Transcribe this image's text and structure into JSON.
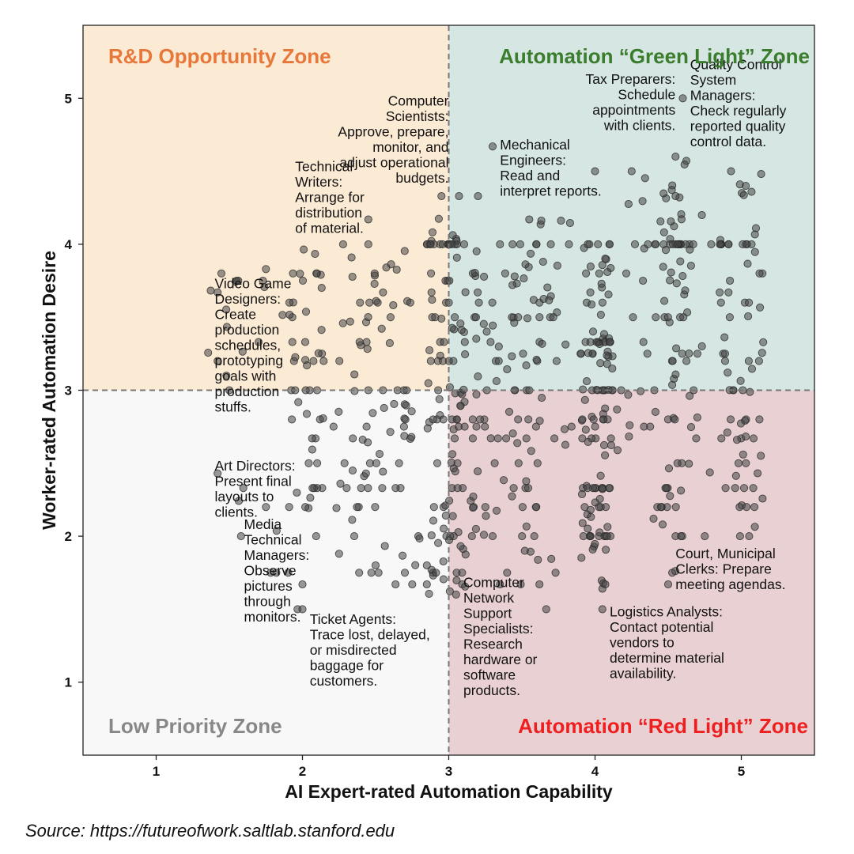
{
  "chart_data": {
    "type": "scatter",
    "title": "",
    "xlabel": "AI Expert-rated Automation Capability",
    "ylabel": "Worker-rated Automation Desire",
    "xlim": [
      0.5,
      5.5
    ],
    "ylim": [
      0.5,
      5.5
    ],
    "xticks": [
      "1",
      "2",
      "3",
      "4",
      "5"
    ],
    "yticks": [
      "1",
      "2",
      "3",
      "4",
      "5"
    ],
    "grid": false,
    "threshold_lines": {
      "x": 3,
      "y": 3,
      "style": "dashed"
    },
    "zones": [
      {
        "name": "R&D Opportunity Zone",
        "quadrant": "top-left",
        "fill": "#fcebd4",
        "label_color": "#e8773a"
      },
      {
        "name": "Automation “Green Light” Zone",
        "quadrant": "top-right",
        "fill": "#d6e6e3",
        "label_color": "#3a7d2c"
      },
      {
        "name": "Low Priority Zone",
        "quadrant": "bottom-left",
        "fill": "#f8f8f8",
        "label_color": "#888888"
      },
      {
        "name": "Automation “Red Light” Zone",
        "quadrant": "bottom-right",
        "fill": "#e9d0d3",
        "label_color": "#ee1f1f"
      }
    ],
    "annotations": [
      {
        "x": 1.4,
        "y": 3.7,
        "anchor": "start",
        "lines": [
          "Video Game",
          "Designers:",
          "Create",
          "production",
          "schedules,",
          "prototyping",
          "goals with",
          "production",
          "stuffs."
        ]
      },
      {
        "x": 1.95,
        "y": 4.5,
        "anchor": "start",
        "lines": [
          "Technical",
          "Writers:",
          "Arrange for",
          "distribution",
          "of material."
        ]
      },
      {
        "x": 3.0,
        "y": 4.95,
        "anchor": "end",
        "lines": [
          "Computer",
          "Scientists:",
          "Approve, prepare,",
          "monitor, and",
          "adjust operational",
          "budgets."
        ]
      },
      {
        "x": 3.35,
        "y": 4.65,
        "anchor": "start",
        "lines": [
          "Mechanical",
          "Engineers:",
          "Read and",
          "interpret reports."
        ]
      },
      {
        "x": 4.55,
        "y": 5.1,
        "anchor": "end",
        "lines": [
          "Tax Preparers:",
          "Schedule",
          "appointments",
          "with clients."
        ]
      },
      {
        "x": 4.65,
        "y": 5.2,
        "anchor": "start",
        "lines": [
          "Quality Control",
          "System",
          "Managers:",
          "Check regularly",
          "reported quality",
          "control data."
        ]
      },
      {
        "x": 1.4,
        "y": 2.45,
        "anchor": "start",
        "lines": [
          "Art Directors:",
          "Present final",
          "layouts to",
          "clients."
        ]
      },
      {
        "x": 1.6,
        "y": 2.05,
        "anchor": "start",
        "lines": [
          "Media",
          "Technical",
          "Managers:",
          "Observe",
          "pictures",
          "through",
          "monitors."
        ]
      },
      {
        "x": 2.05,
        "y": 1.4,
        "anchor": "start",
        "lines": [
          "Ticket Agents:",
          "Trace lost, delayed,",
          "or misdirected",
          "baggage for",
          "customers."
        ]
      },
      {
        "x": 3.1,
        "y": 1.65,
        "anchor": "start",
        "lines": [
          "Computer",
          "Network",
          "Support",
          "Specialists:",
          "Research",
          "hardware or",
          "software",
          "products."
        ]
      },
      {
        "x": 4.1,
        "y": 1.45,
        "anchor": "start",
        "lines": [
          "Logistics Analysts:",
          "Contact potential",
          "vendors to",
          "determine material",
          "availability."
        ]
      },
      {
        "x": 4.55,
        "y": 1.85,
        "anchor": "start",
        "lines": [
          "Court, Municipal",
          "Clerks: Prepare",
          "meeting agendas."
        ]
      }
    ],
    "point_groups": [
      {
        "x_range": [
          1.35,
          1.6
        ],
        "y_range": [
          3.0,
          3.8
        ],
        "n": 8
      },
      {
        "x_range": [
          1.7,
          1.9
        ],
        "y_range": [
          3.3,
          3.85
        ],
        "n": 3
      },
      {
        "x_range": [
          1.9,
          2.15
        ],
        "y_range": [
          2.1,
          4.0
        ],
        "n": 45
      },
      {
        "x_range": [
          1.75,
          2.1
        ],
        "y_range": [
          1.5,
          2.3
        ],
        "n": 7
      },
      {
        "x_range": [
          1.45,
          1.6
        ],
        "y_range": [
          2.0,
          2.45
        ],
        "n": 2
      },
      {
        "x_range": [
          2.2,
          2.75
        ],
        "y_range": [
          2.0,
          4.0
        ],
        "n": 75
      },
      {
        "x_range": [
          2.3,
          2.6
        ],
        "y_range": [
          1.7,
          2.1
        ],
        "n": 4
      },
      {
        "x_range": [
          2.6,
          2.8
        ],
        "y_range": [
          1.6,
          2.0
        ],
        "n": 5
      },
      {
        "x_range": [
          2.85,
          3.0
        ],
        "y_range": [
          1.6,
          4.35
        ],
        "n": 55
      },
      {
        "x_range": [
          3.0,
          3.12
        ],
        "y_range": [
          1.6,
          4.35
        ],
        "n": 60
      },
      {
        "x_range": [
          3.15,
          3.65
        ],
        "y_range": [
          2.0,
          4.0
        ],
        "n": 95
      },
      {
        "x_range": [
          3.3,
          3.75
        ],
        "y_range": [
          1.5,
          2.0
        ],
        "n": 6
      },
      {
        "x_range": [
          3.6,
          3.85
        ],
        "y_range": [
          2.5,
          4.25
        ],
        "n": 20
      },
      {
        "x_range": [
          3.9,
          4.12
        ],
        "y_range": [
          1.85,
          4.0
        ],
        "n": 115
      },
      {
        "x_range": [
          4.0,
          4.1
        ],
        "y_range": [
          1.5,
          1.7
        ],
        "n": 3
      },
      {
        "x_range": [
          4.15,
          4.4
        ],
        "y_range": [
          2.4,
          4.5
        ],
        "n": 20
      },
      {
        "x_range": [
          4.4,
          4.65
        ],
        "y_range": [
          2.0,
          4.6
        ],
        "n": 75
      },
      {
        "x_range": [
          4.45,
          4.7
        ],
        "y_range": [
          1.65,
          2.1
        ],
        "n": 4
      },
      {
        "x_range": [
          4.65,
          4.8
        ],
        "y_range": [
          2.0,
          4.5
        ],
        "n": 10
      },
      {
        "x_range": [
          4.85,
          5.15
        ],
        "y_range": [
          2.0,
          4.5
        ],
        "n": 70
      },
      {
        "x_range": [
          4.9,
          5.1
        ],
        "y_range": [
          4.0,
          4.5
        ],
        "n": 5
      }
    ],
    "points": [
      [
        4.6,
        5.0
      ],
      [
        3.3,
        4.67
      ],
      [
        4.0,
        4.5
      ],
      [
        4.25,
        4.5
      ],
      [
        4.55,
        4.6
      ],
      [
        4.93,
        4.5
      ],
      [
        5.03,
        4.4
      ],
      [
        2.45,
        4.17
      ],
      [
        2.95,
        4.33
      ],
      [
        3.07,
        4.33
      ],
      [
        3.2,
        4.33
      ],
      [
        3.55,
        4.17
      ],
      [
        4.55,
        4.33
      ],
      [
        4.73,
        4.2
      ],
      [
        5.1,
        4.11
      ],
      [
        1.55,
        3.75
      ],
      [
        1.75,
        3.83
      ],
      [
        1.42,
        3.67
      ],
      [
        1.7,
        3.33
      ],
      [
        1.42,
        3.2
      ],
      [
        1.48,
        3.1
      ],
      [
        1.5,
        3.0
      ],
      [
        3.53,
        3.17
      ],
      [
        2.85,
        1.8
      ],
      [
        2.85,
        1.67
      ],
      [
        3.05,
        1.6
      ],
      [
        2.0,
        1.67
      ],
      [
        2.0,
        1.5
      ],
      [
        2.5,
        1.8
      ],
      [
        2.25,
        1.88
      ],
      [
        2.75,
        1.67
      ],
      [
        2.7,
        1.75
      ],
      [
        1.42,
        2.43
      ],
      [
        1.58,
        2.0
      ],
      [
        1.75,
        2.2
      ],
      [
        3.52,
        1.9
      ],
      [
        3.62,
        1.67
      ],
      [
        3.73,
        1.75
      ],
      [
        4.07,
        1.67
      ],
      [
        4.05,
        1.5
      ],
      [
        4.5,
        1.67
      ],
      [
        4.45,
        2.2
      ],
      [
        4.75,
        2.0
      ],
      [
        4.55,
        2.0
      ],
      [
        4.4,
        2.12
      ],
      [
        3.3,
        2.0
      ],
      [
        3.25,
        2.2
      ],
      [
        3.35,
        1.67
      ],
      [
        1.95,
        3.0
      ],
      [
        2.05,
        3.0
      ],
      [
        2.1,
        3.0
      ],
      [
        2.45,
        3.0
      ],
      [
        2.55,
        3.0
      ],
      [
        2.65,
        3.0
      ],
      [
        3.45,
        3.0
      ],
      [
        3.55,
        3.0
      ],
      [
        3.98,
        3.0
      ],
      [
        4.05,
        3.0
      ],
      [
        4.12,
        3.0
      ],
      [
        3.95,
        4.0
      ],
      [
        4.02,
        4.0
      ],
      [
        4.1,
        4.0
      ],
      [
        3.35,
        4.0
      ],
      [
        3.6,
        4.0
      ],
      [
        2.45,
        4.0
      ]
    ]
  },
  "source_note": "Source: https://futureofwork.saltlab.stanford.edu"
}
